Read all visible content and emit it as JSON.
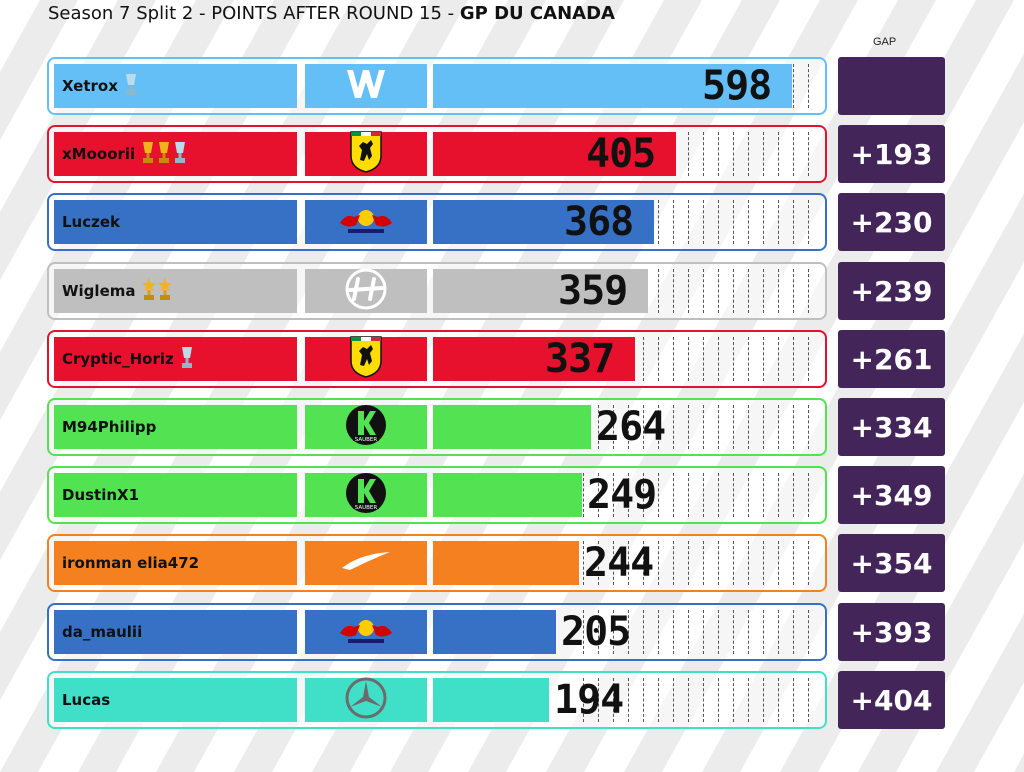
{
  "title": {
    "prefix": "Season 7 Split 2 - POINTS AFTER ROUND 15 - ",
    "event": "GP DU CANADA"
  },
  "gap_header": "GAP",
  "colors": {
    "gap_box": "#44255a",
    "background": "#ffffff"
  },
  "chart_data": {
    "type": "bar",
    "orientation": "horizontal",
    "title": "Season 7 Split 2 - POINTS AFTER ROUND 15 - GP DU CANADA",
    "categories": [
      "Xetrox",
      "xMooorii",
      "Luczek",
      "Wiglema",
      "Cryptic_Horiz",
      "M94Philipp",
      "DustinX1",
      "ironman elia472",
      "da_maulii",
      "Lucas"
    ],
    "values": [
      598,
      405,
      368,
      359,
      337,
      264,
      249,
      244,
      205,
      194
    ],
    "xlim": [
      0,
      650
    ]
  },
  "rows": [
    {
      "driver": "Xetrox",
      "points": "598",
      "gap": "",
      "team": "Williams",
      "team_icon": "williams-logo-icon",
      "color": "#64bff7",
      "trophies": [
        "silver"
      ]
    },
    {
      "driver": "xMooorii",
      "points": "405",
      "gap": "+193",
      "team": "Ferrari",
      "team_icon": "ferrari-logo-icon",
      "color": "#e8112d",
      "trophies": [
        "gold",
        "gold",
        "silver"
      ]
    },
    {
      "driver": "Luczek",
      "points": "368",
      "gap": "+230",
      "team": "Red Bull",
      "team_icon": "red-bull-logo-icon",
      "color": "#3671c6",
      "trophies": []
    },
    {
      "driver": "Wiglema",
      "points": "359",
      "gap": "+239",
      "team": "Haas",
      "team_icon": "haas-logo-icon",
      "color": "#bfbfbf",
      "trophies": [
        "gold-star",
        "gold-star"
      ]
    },
    {
      "driver": "Cryptic_Horiz",
      "points": "337",
      "gap": "+261",
      "team": "Ferrari",
      "team_icon": "ferrari-logo-icon",
      "color": "#e8112d",
      "trophies": [
        "silver"
      ]
    },
    {
      "driver": "M94Philipp",
      "points": "264",
      "gap": "+334",
      "team": "Sauber",
      "team_icon": "sauber-logo-icon",
      "color": "#52e252",
      "trophies": []
    },
    {
      "driver": "DustinX1",
      "points": "249",
      "gap": "+349",
      "team": "Sauber",
      "team_icon": "sauber-logo-icon",
      "color": "#52e252",
      "trophies": []
    },
    {
      "driver": "ironman elia472",
      "points": "244",
      "gap": "+354",
      "team": "McLaren",
      "team_icon": "mclaren-logo-icon",
      "color": "#f58020",
      "trophies": []
    },
    {
      "driver": "da_maulii",
      "points": "205",
      "gap": "+393",
      "team": "Red Bull",
      "team_icon": "red-bull-logo-icon",
      "color": "#3671c6",
      "trophies": []
    },
    {
      "driver": "Lucas",
      "points": "194",
      "gap": "+404",
      "team": "Mercedes",
      "team_icon": "mercedes-logo-icon",
      "color": "#40e0c8",
      "trophies": []
    }
  ]
}
